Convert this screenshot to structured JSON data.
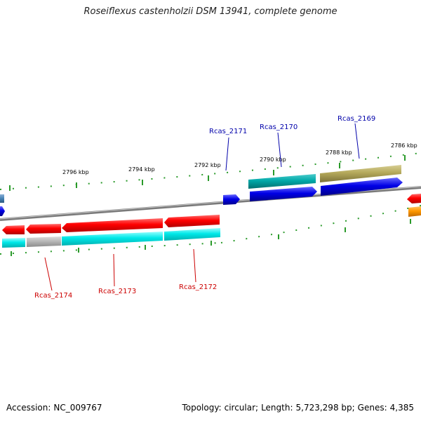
{
  "title": "Roseiflexus castenholzii DSM 13941, complete genome",
  "footer": {
    "accession_label": "Accession:",
    "accession": "NC_009767",
    "topology_label": "Topology:",
    "topology": "circular;",
    "length_label": "Length:",
    "length": "5,723,298 bp;",
    "genes_label": "Genes:",
    "genes": "4,385"
  },
  "scale_labels": [
    "2796 kbp",
    "2794 kbp",
    "2792 kbp",
    "2790 kbp",
    "2788 kbp",
    "2786 kbp"
  ],
  "gene_labels_forward": [
    "Rcas_2171",
    "Rcas_2170",
    "Rcas_2169"
  ],
  "gene_labels_reverse": [
    "Rcas_2174",
    "Rcas_2173",
    "Rcas_2172"
  ],
  "colors": {
    "backbone": "#808080",
    "cds_reverse": "#ff0000",
    "cds_forward": "#0000e6",
    "cog_cyan": "#00e0e0",
    "cog_grey": "#b4b4b4",
    "cog_teal": "#00a8a8",
    "cog_olive": "#b4a85a",
    "cog_orange": "#ff9900",
    "cog_steelblue": "#4682b4",
    "tick": "#228b22",
    "label_forward": "#0000aa",
    "label_reverse": "#cc0000"
  }
}
